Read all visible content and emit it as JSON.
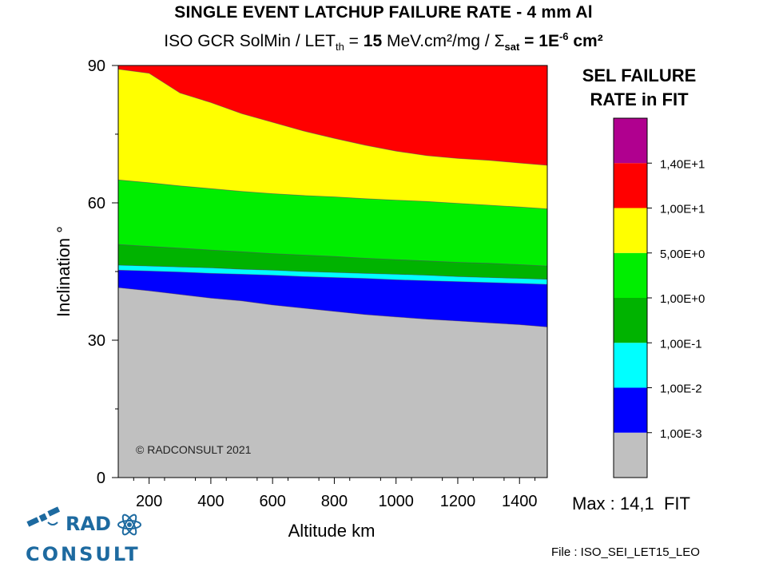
{
  "chart_data": {
    "type": "heatmap",
    "title": "SINGLE EVENT LATCHUP FAILURE RATE - 4 mm Al",
    "subtitle_parts": {
      "prefix": "ISO GCR SolMin / LET",
      "let_sub": "th",
      "eq1": " = ",
      "let_value": "15",
      "let_unit": " MeV.cm²/mg / ",
      "sigma": "Σ",
      "sigma_sub": "sat",
      "eq2": " = 1E",
      "exp": "-6",
      "area_unit": " cm²"
    },
    "xlabel": "Altitude km",
    "ylabel": "Inclination °",
    "xlim": [
      100,
      1490
    ],
    "ylim": [
      0,
      90
    ],
    "x_ticks": [
      200,
      400,
      600,
      800,
      1000,
      1200,
      1400
    ],
    "y_ticks": [
      0,
      30,
      60,
      90
    ],
    "levels": [
      {
        "color": "#c0c0c0",
        "lower": null
      },
      {
        "color": "#0000ff",
        "lower": "1,00E-3"
      },
      {
        "color": "#00ffff",
        "lower": "1,00E-2"
      },
      {
        "color": "#00b300",
        "lower": "1,00E-1"
      },
      {
        "color": "#00ee00",
        "lower": "1,00E+0"
      },
      {
        "color": "#ffff00",
        "lower": "5,00E+0"
      },
      {
        "color": "#ff0000",
        "lower": "1,00E+1"
      },
      {
        "color": "#b0008f",
        "lower": "1,40E+1"
      }
    ],
    "boundaries": {
      "x": [
        100,
        200,
        300,
        400,
        500,
        600,
        700,
        800,
        900,
        1000,
        1100,
        1200,
        1300,
        1400,
        1490
      ],
      "gray_top": [
        41.5,
        40.8,
        40.0,
        39.2,
        38.6,
        37.7,
        37.0,
        36.3,
        35.6,
        35.1,
        34.6,
        34.2,
        33.8,
        33.4,
        32.9
      ],
      "blue_top": [
        45.3,
        45.1,
        44.9,
        44.6,
        44.4,
        44.2,
        43.9,
        43.7,
        43.5,
        43.2,
        43.0,
        42.8,
        42.6,
        42.4,
        42.2
      ],
      "cyan_top": [
        46.4,
        46.2,
        46.0,
        45.8,
        45.5,
        45.3,
        45.0,
        44.8,
        44.6,
        44.4,
        44.2,
        43.9,
        43.7,
        43.5,
        43.3
      ],
      "dgreen_top": [
        50.9,
        50.5,
        50.1,
        49.7,
        49.3,
        48.9,
        48.6,
        48.3,
        47.9,
        47.6,
        47.3,
        47.0,
        46.8,
        46.5,
        46.2
      ],
      "green_top": [
        65.0,
        64.4,
        63.7,
        63.1,
        62.5,
        62.0,
        61.6,
        61.3,
        60.9,
        60.6,
        60.3,
        59.9,
        59.5,
        59.1,
        58.7
      ],
      "yellow_top": [
        89.2,
        88.3,
        84.0,
        81.9,
        79.5,
        77.6,
        75.7,
        74.1,
        72.6,
        71.3,
        70.3,
        69.7,
        69.3,
        68.7,
        68.2
      ]
    },
    "annotation": "© RADCONSULT 2021",
    "legend_title_lines": [
      "SEL FAILURE",
      "RATE in FIT"
    ]
  },
  "max_label": "Max : 14,1  FIT",
  "file_label": "File : ISO_SEI_LET15_LEO",
  "logo": {
    "line1": "RAD",
    "line2": "CONSULT"
  }
}
